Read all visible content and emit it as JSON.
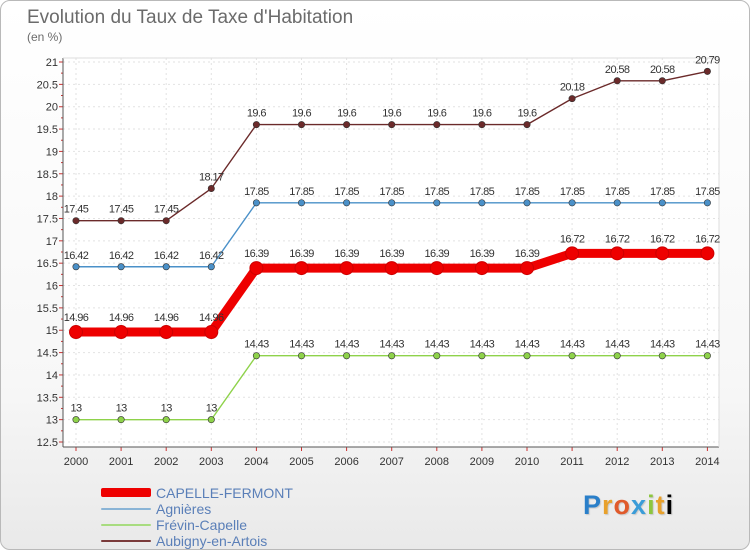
{
  "chart_data": {
    "type": "line",
    "title": "Evolution du Taux de Taxe d'Habitation",
    "ylabel": "(en %)",
    "xlabel": "",
    "categories": [
      "2000",
      "2001",
      "2002",
      "2003",
      "2004",
      "2005",
      "2006",
      "2007",
      "2008",
      "2009",
      "2010",
      "2011",
      "2012",
      "2013",
      "2014"
    ],
    "ylim": [
      12.5,
      21
    ],
    "yticks": [
      "12.5",
      "13",
      "13.5",
      "14",
      "14.5",
      "15",
      "15.5",
      "16",
      "16.5",
      "17",
      "17.5",
      "18",
      "18.5",
      "19",
      "19.5",
      "20",
      "20.5",
      "21"
    ],
    "grid": true,
    "series": [
      {
        "name": "Aubigny-en-Artois",
        "color": "#6b2a2a",
        "values": [
          17.45,
          17.45,
          17.45,
          18.17,
          19.6,
          19.6,
          19.6,
          19.6,
          19.6,
          19.6,
          19.6,
          20.18,
          20.58,
          20.58,
          20.79
        ],
        "labels": [
          "17.45",
          "17.45",
          "17.45",
          "18.17",
          "19.6",
          "19.6",
          "19.6",
          "19.6",
          "19.6",
          "19.6",
          "19.6",
          "20.18",
          "20.58",
          "20.58",
          "20.79"
        ]
      },
      {
        "name": "Agnières",
        "color": "#4a90c8",
        "values": [
          16.42,
          16.42,
          16.42,
          16.42,
          17.85,
          17.85,
          17.85,
          17.85,
          17.85,
          17.85,
          17.85,
          17.85,
          17.85,
          17.85,
          17.85
        ],
        "labels": [
          "16.42",
          "16.42",
          "16.42",
          "16.42",
          "17.85",
          "17.85",
          "17.85",
          "17.85",
          "17.85",
          "17.85",
          "17.85",
          "17.85",
          "17.85",
          "17.85",
          "17.85"
        ]
      },
      {
        "name": "Frévin-Capelle",
        "color": "#8ed24a",
        "values": [
          13,
          13,
          13,
          13,
          14.43,
          14.43,
          14.43,
          14.43,
          14.43,
          14.43,
          14.43,
          14.43,
          14.43,
          14.43,
          14.43
        ],
        "labels": [
          "13",
          "13",
          "13",
          "13",
          "14.43",
          "14.43",
          "14.43",
          "14.43",
          "14.43",
          "14.43",
          "14.43",
          "14.43",
          "14.43",
          "14.43",
          "14.43"
        ]
      },
      {
        "name": "CAPELLE-FERMONT",
        "color": "#ee0000",
        "values": [
          14.96,
          14.96,
          14.96,
          14.96,
          16.39,
          16.39,
          16.39,
          16.39,
          16.39,
          16.39,
          16.39,
          16.72,
          16.72,
          16.72,
          16.72
        ],
        "labels": [
          "14.96",
          "14.96",
          "14.96",
          "14.96",
          "16.39",
          "16.39",
          "16.39",
          "16.39",
          "16.39",
          "16.39",
          "16.39",
          "16.72",
          "16.72",
          "16.72",
          "16.72"
        ]
      }
    ],
    "legend": {
      "position": "bottom-left",
      "items": [
        {
          "name": "CAPELLE-FERMONT",
          "color": "#ee0000"
        },
        {
          "name": "Agnières",
          "color": "#8ab4d6"
        },
        {
          "name": "Frévin-Capelle",
          "color": "#a8dc80"
        },
        {
          "name": "Aubigny-en-Artois",
          "color": "#7a3a3a"
        }
      ]
    }
  },
  "logo": {
    "letters": [
      "P",
      "r",
      "o",
      "x",
      "i",
      "t",
      "i"
    ]
  }
}
